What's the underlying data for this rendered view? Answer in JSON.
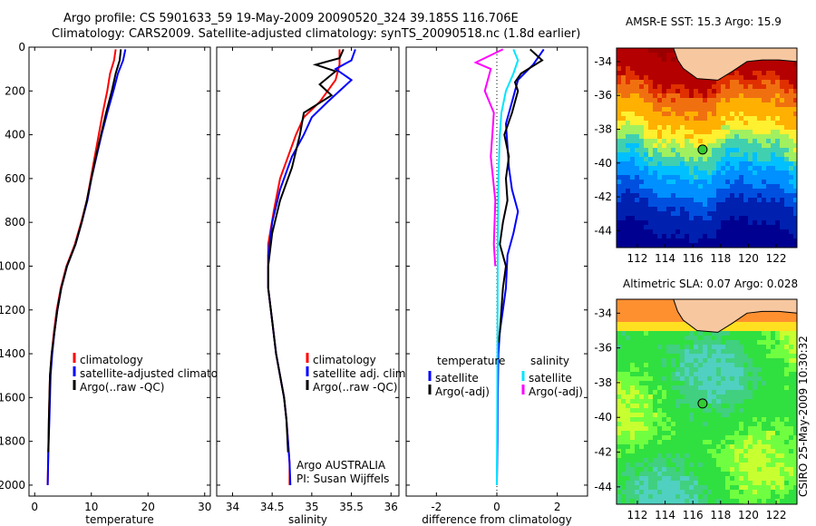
{
  "header": {
    "line1": "Argo profile: CS 5901633_59 19-May-2009 20090520_324 39.185S 116.706E",
    "line2": "Climatology: CARS2009. Satellite-adjusted climatology: synTS_20090518.nc (1.8d earlier)"
  },
  "footer_text": "CSIRO 25-May-2009 10:30:32",
  "credit": {
    "line1": "Argo AUSTRALIA",
    "line2": "PI: Susan Wijffels"
  },
  "colors": {
    "climatology": "#ff0000",
    "satellite": "#0000ff",
    "argo": "#000000",
    "sal_satellite": "#00e5ff",
    "sal_argo": "#ff00ff",
    "land": "#f7c7a0",
    "float_marker": "#33cc33"
  },
  "chart_data": [
    {
      "type": "line",
      "id": "temperature",
      "xlabel": "temperature",
      "xlim": [
        -1,
        31
      ],
      "ylim": [
        2050,
        0
      ],
      "xticks": [
        0,
        10,
        20,
        30
      ],
      "yticks": [
        0,
        200,
        400,
        600,
        800,
        1000,
        1200,
        1400,
        1600,
        1800,
        2000
      ],
      "legend": [
        "climatology",
        "satellite-adjusted climatology",
        "Argo(..raw -QC)"
      ],
      "series": [
        {
          "name": "climatology",
          "color": "#ff0000",
          "x": [
            14.3,
            14.0,
            13.3,
            12.8,
            12.0,
            11.3,
            10.6,
            9.9,
            9.2,
            8.2,
            7.1,
            5.6,
            4.6,
            3.9,
            3.4,
            3.0,
            2.7,
            2.5,
            2.4,
            2.3
          ],
          "y": [
            10,
            60,
            120,
            200,
            300,
            400,
            500,
            600,
            700,
            800,
            900,
            1000,
            1100,
            1200,
            1300,
            1400,
            1500,
            1700,
            1850,
            2000
          ]
        },
        {
          "name": "satellite-adjusted climatology",
          "color": "#0000ff",
          "x": [
            16.0,
            15.6,
            14.7,
            13.9,
            12.8,
            11.8,
            10.9,
            10.0,
            9.3,
            8.3,
            7.2,
            5.7,
            4.7,
            4.0,
            3.5,
            3.1,
            2.8,
            2.6,
            2.4,
            2.3
          ],
          "y": [
            10,
            60,
            120,
            200,
            300,
            400,
            500,
            600,
            700,
            800,
            900,
            1000,
            1100,
            1200,
            1300,
            1400,
            1500,
            1700,
            1850,
            2000
          ]
        },
        {
          "name": "Argo(..raw -QC)",
          "color": "#000000",
          "x": [
            15.2,
            15.0,
            14.3,
            13.6,
            12.6,
            11.7,
            10.8,
            10.0,
            9.2,
            8.3,
            7.2,
            5.7,
            4.7,
            4.0,
            3.5,
            3.0,
            2.7,
            2.5,
            2.4
          ],
          "y": [
            10,
            60,
            120,
            200,
            300,
            400,
            500,
            600,
            700,
            800,
            900,
            1000,
            1100,
            1200,
            1300,
            1400,
            1500,
            1700,
            1850
          ]
        }
      ]
    },
    {
      "type": "line",
      "id": "salinity",
      "xlabel": "salinity",
      "xlim": [
        33.8,
        36.1
      ],
      "ylim": [
        2050,
        0
      ],
      "xticks": [
        34,
        34.5,
        35,
        35.5,
        36
      ],
      "legend": [
        "climatology",
        "satellite adj. clim.",
        "Argo(..raw -QC)"
      ],
      "series": [
        {
          "name": "climatology",
          "color": "#ff0000",
          "x": [
            35.35,
            35.35,
            35.3,
            35.1,
            34.9,
            34.8,
            34.7,
            34.6,
            34.52,
            34.45,
            34.45,
            34.5,
            34.55,
            34.6,
            34.65,
            34.68,
            34.7,
            34.72,
            34.72
          ],
          "y": [
            10,
            80,
            150,
            250,
            320,
            400,
            500,
            600,
            750,
            900,
            1100,
            1250,
            1400,
            1500,
            1600,
            1700,
            1800,
            1900,
            2000
          ]
        },
        {
          "name": "satellite adj. clim.",
          "color": "#0000ff",
          "x": [
            35.55,
            35.5,
            35.3,
            35.5,
            35.2,
            35.0,
            34.9,
            34.75,
            34.6,
            34.5,
            34.45,
            34.45,
            34.5,
            34.55,
            34.6,
            34.65,
            34.68,
            34.7,
            34.72,
            34.73
          ],
          "y": [
            10,
            60,
            100,
            150,
            250,
            320,
            400,
            500,
            650,
            800,
            950,
            1100,
            1250,
            1400,
            1500,
            1600,
            1700,
            1800,
            1900,
            2000
          ]
        },
        {
          "name": "Argo(..raw -QC)",
          "color": "#000000",
          "x": [
            35.4,
            35.35,
            35.05,
            35.3,
            35.1,
            35.25,
            34.9,
            34.85,
            34.75,
            34.6,
            34.5,
            34.45,
            34.45,
            34.5,
            34.55,
            34.6,
            34.65,
            34.68,
            34.7
          ],
          "y": [
            10,
            50,
            80,
            110,
            170,
            220,
            300,
            400,
            550,
            700,
            850,
            1000,
            1100,
            1250,
            1400,
            1500,
            1600,
            1700,
            1850
          ]
        }
      ]
    },
    {
      "type": "line",
      "id": "difference",
      "xlabel": "difference from climatology",
      "xlim": [
        -3,
        3
      ],
      "ylim": [
        2050,
        0
      ],
      "xticks": [
        -2,
        0,
        2
      ],
      "legend": [
        "temperature",
        "satellite",
        "Argo(-adj)",
        "salinity",
        "satellite",
        "Argo(-adj)"
      ],
      "series": [
        {
          "name": "temperature satellite",
          "color": "#0000ff",
          "x": [
            1.55,
            1.2,
            0.7,
            0.5,
            0.3,
            0.35,
            0.4,
            0.5,
            0.7,
            0.55,
            0.35,
            0.3,
            0.2,
            0.1,
            0.05,
            0.03,
            0.02,
            0.0
          ],
          "y": [
            10,
            80,
            150,
            250,
            350,
            450,
            550,
            650,
            750,
            850,
            950,
            1100,
            1200,
            1300,
            1400,
            1600,
            1800,
            2000
          ]
        },
        {
          "name": "temperature Argo(-adj)",
          "color": "#000000",
          "x": [
            1.1,
            1.5,
            0.8,
            0.6,
            0.7,
            0.5,
            0.25,
            0.4,
            0.3,
            0.35,
            0.2,
            0.1,
            0.3,
            0.2,
            0.15,
            0.1,
            0.05
          ],
          "y": [
            10,
            60,
            120,
            160,
            200,
            300,
            400,
            500,
            600,
            700,
            800,
            900,
            1000,
            1100,
            1200,
            1300,
            1350
          ]
        },
        {
          "name": "salinity satellite",
          "color": "#00e5ff",
          "x": [
            0.55,
            0.7,
            0.55,
            0.3,
            0.15,
            0.1,
            0.05,
            0.03,
            0.02,
            0.0
          ],
          "y": [
            10,
            60,
            120,
            200,
            300,
            400,
            600,
            900,
            1300,
            2000
          ]
        },
        {
          "name": "salinity Argo(-adj)",
          "color": "#ff00ff",
          "x": [
            0.2,
            -0.7,
            -0.2,
            -0.4,
            -0.1,
            -0.2,
            -0.05,
            -0.1,
            -0.05
          ],
          "y": [
            10,
            70,
            100,
            200,
            300,
            500,
            700,
            900,
            1000
          ]
        }
      ]
    }
  ],
  "maps": [
    {
      "title": "AMSR-E SST: 15.3  Argo: 15.9",
      "xticks": [
        "112",
        "114",
        "116",
        "118",
        "120",
        "122"
      ],
      "yticks": [
        "-34",
        "-36",
        "-38",
        "-40",
        "-42",
        "-44"
      ],
      "xlim": [
        110.5,
        123.5
      ],
      "ylim": [
        -45,
        -33.2
      ],
      "float": {
        "lon": 116.7,
        "lat": -39.2
      }
    },
    {
      "title": "Altimetric SLA: 0.07  Argo: 0.028",
      "xticks": [
        "112",
        "114",
        "116",
        "118",
        "120",
        "122"
      ],
      "yticks": [
        "-34",
        "-36",
        "-38",
        "-40",
        "-42",
        "-44"
      ],
      "xlim": [
        110.5,
        123.5
      ],
      "ylim": [
        -45,
        -33.2
      ],
      "float": {
        "lon": 116.7,
        "lat": -39.2
      }
    }
  ]
}
